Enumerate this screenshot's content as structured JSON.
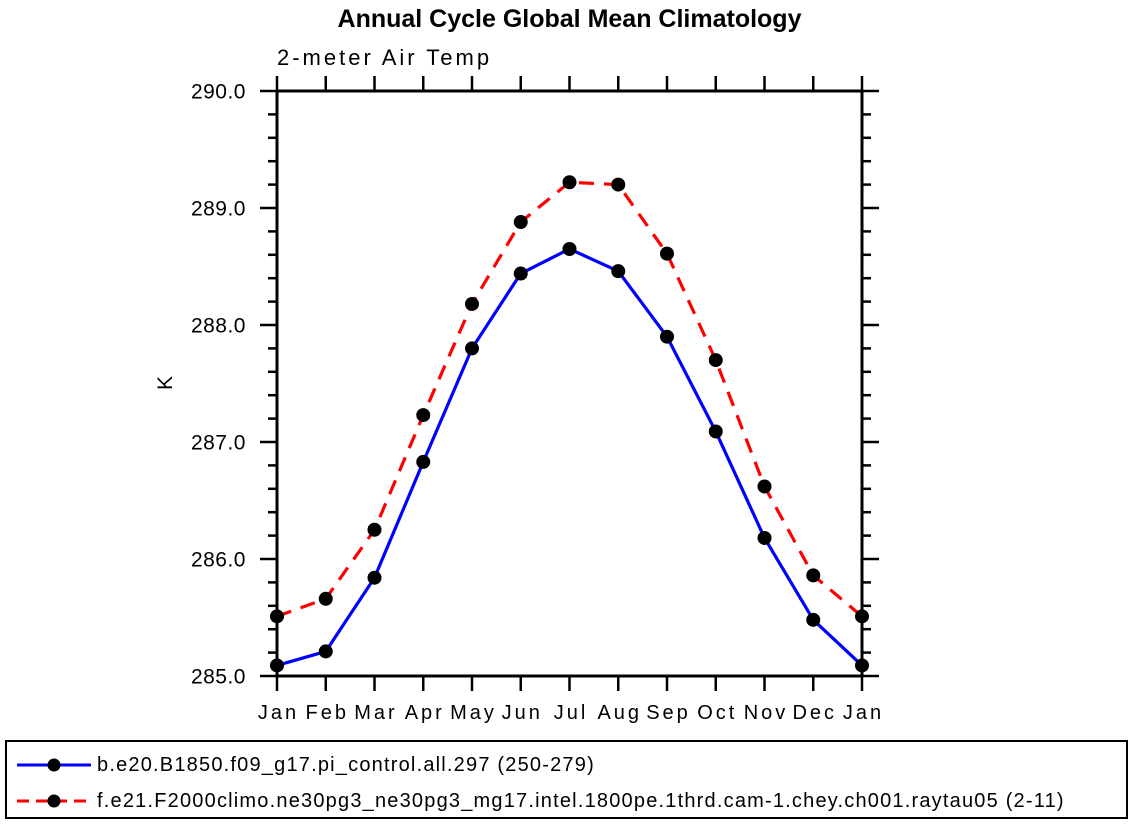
{
  "chart_data": {
    "type": "line",
    "title": "Annual Cycle Global Mean Climatology",
    "subtitle": "2-meter Air Temp",
    "ylabel": "K",
    "xlabel": "",
    "ylim": [
      285.0,
      290.0
    ],
    "ytick_step": 1.0,
    "ytick_minor_step": 0.2,
    "ytick_labels": [
      "285.0",
      "286.0",
      "287.0",
      "288.0",
      "289.0",
      "290.0"
    ],
    "categories": [
      "Jan",
      "Feb",
      "Mar",
      "Apr",
      "May",
      "Jun",
      "Jul",
      "Aug",
      "Sep",
      "Oct",
      "Nov",
      "Dec",
      "Jan"
    ],
    "grid": false,
    "frame_style": "box-with-outward-ticks",
    "axis_color": "#000000",
    "background_color": "#ffffff",
    "legend_position": "bottom-outside-box",
    "series": [
      {
        "name": "b.e20.B1850.f09_g17.pi_control.all.297 (250-279)",
        "color": "#0000ff",
        "line_style": "solid",
        "marker": "filled-circle",
        "marker_color": "#000000",
        "values": [
          285.09,
          285.21,
          285.84,
          286.83,
          287.8,
          288.44,
          288.65,
          288.46,
          287.9,
          287.09,
          286.18,
          285.48,
          285.09
        ]
      },
      {
        "name": "f.e21.F2000climo.ne30pg3_ne30pg3_mg17.intel.1800pe.1thrd.cam-1.chey.ch001.raytau05 (2-11)",
        "color": "#ff0000",
        "line_style": "dashed",
        "marker": "filled-circle",
        "marker_color": "#000000",
        "values": [
          285.51,
          285.66,
          286.25,
          287.23,
          288.18,
          288.88,
          289.22,
          289.2,
          288.61,
          287.7,
          286.62,
          285.86,
          285.51
        ]
      }
    ]
  }
}
